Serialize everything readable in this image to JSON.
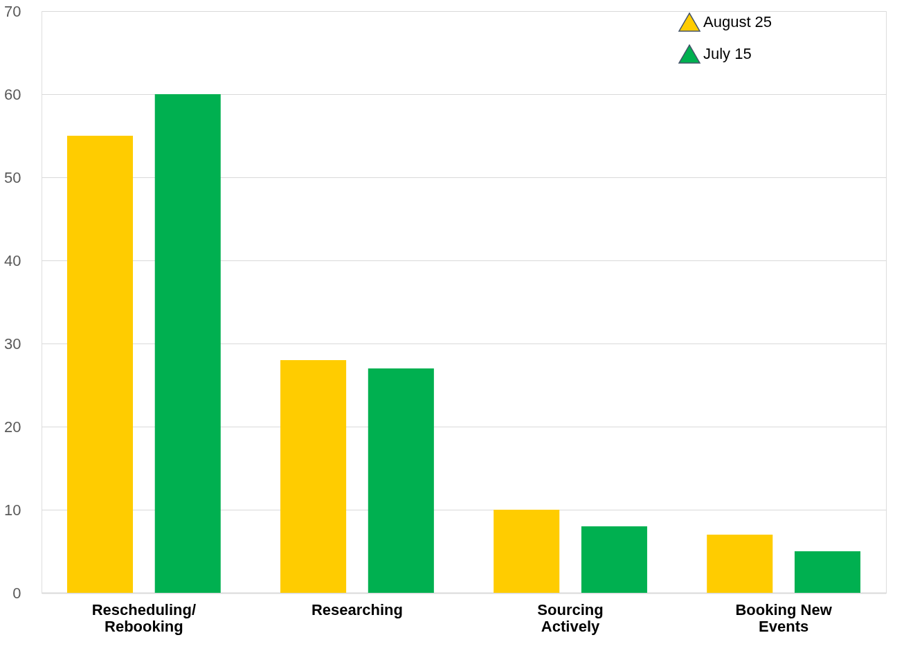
{
  "chart_data": {
    "type": "bar",
    "categories": [
      "Rescheduling/\nRebooking",
      "Researching",
      "Sourcing\nActively",
      "Booking New\nEvents"
    ],
    "series": [
      {
        "name": "August 25",
        "color": "#ffcc00",
        "values": [
          55,
          28,
          10,
          7
        ]
      },
      {
        "name": "July 15",
        "color": "#00b050",
        "values": [
          60,
          27,
          8,
          5
        ]
      }
    ],
    "ylim": [
      0,
      70
    ],
    "yticks": [
      0,
      10,
      20,
      30,
      40,
      50,
      60,
      70
    ],
    "grid": "y",
    "legend": "right"
  }
}
